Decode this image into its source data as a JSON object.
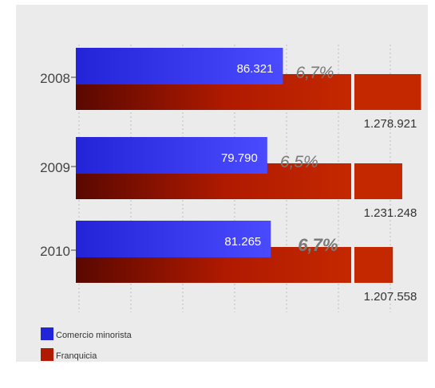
{
  "chart_data": {
    "type": "bar",
    "orientation": "horizontal",
    "title": "",
    "xlabel": "",
    "ylabel": "",
    "categories": [
      "2008",
      "2009",
      "2010"
    ],
    "series": [
      {
        "name": "Comercio minorista",
        "values": [
          86321,
          79790,
          81265
        ],
        "labels": [
          "86.321",
          "79.790",
          "81.265"
        ],
        "color": "#2323d8"
      },
      {
        "name": "Franquicia",
        "values": [
          1278921,
          1231248,
          1207558
        ],
        "labels": [
          "1.278.921",
          "1.231.248",
          "1.207.558"
        ],
        "color": "#b01a00"
      }
    ],
    "percent_labels": [
      "6,7%",
      "6,5%",
      "6,7%"
    ],
    "percent_bold": [
      false,
      false,
      true
    ],
    "axis_break": true,
    "grid": true,
    "legend_position": "bottom-left",
    "colors": {
      "panel": "#ebebeb",
      "grid": "#bdbdbd",
      "retail": "#2323d8",
      "retail_light": "#4a4aff",
      "franchise_dark": "#5a0800",
      "franchise": "#b01a00",
      "franchise_light": "#c42800",
      "percent_text": "#7a7a7a",
      "axis_text": "#444444"
    }
  }
}
